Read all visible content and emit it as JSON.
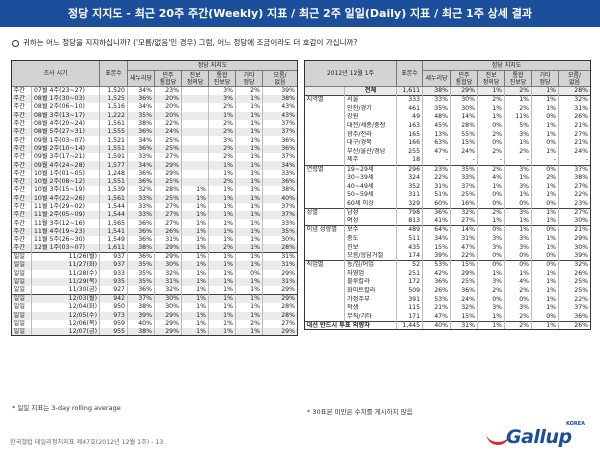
{
  "title": "정당 지지도 - 최근 20주 주간(Weekly) 지표 / 최근 2주 일일(Daily) 지표 / 최근 1주 상세 결과",
  "question": "귀하는 어느 정당을 지지하십니까? ('모름/없음'인 경우) 그럼, 어느 정당에 조금이라도 더 호감이 가십니까?",
  "left_table": {
    "col_survey": "조사 시기",
    "col_base": "표본수",
    "col_group": "정당 지지도",
    "cols": [
      "새누리당",
      "민주\n통합당",
      "진보\n정의당",
      "통합\n진보당",
      "기타\n정당",
      "모름/\n없음"
    ],
    "weekly": [
      [
        "주간",
        "07월 4주(23~27)",
        "1,520",
        "34%",
        "23%",
        "",
        "3%",
        "2%",
        "39%"
      ],
      [
        "주간",
        "08월 1주(30~03)",
        "1,525",
        "36%",
        "20%",
        "",
        "3%",
        "1%",
        "38%"
      ],
      [
        "주간",
        "08월 2주(06~10)",
        "1,516",
        "34%",
        "20%",
        "",
        "2%",
        "1%",
        "43%"
      ],
      [
        "주간",
        "08월 3주(13~17)",
        "1,222",
        "35%",
        "20%",
        "",
        "1%",
        "1%",
        "43%"
      ],
      [
        "주간",
        "08월 4주(20~24)",
        "1,561",
        "38%",
        "22%",
        "",
        "2%",
        "1%",
        "37%"
      ],
      [
        "주간",
        "08월 5주(27~31)",
        "1,555",
        "36%",
        "24%",
        "",
        "2%",
        "1%",
        "37%"
      ],
      [
        "주간",
        "09월 1주(03~07)",
        "1,521",
        "34%",
        "25%",
        "",
        "3%",
        "1%",
        "36%"
      ],
      [
        "주간",
        "09월 2주(10~14)",
        "1,551",
        "36%",
        "25%",
        "",
        "2%",
        "1%",
        "36%"
      ],
      [
        "주간",
        "09월 3주(17~21)",
        "1,591",
        "33%",
        "27%",
        "",
        "2%",
        "1%",
        "37%"
      ],
      [
        "주간",
        "09월 4주(24~28)",
        "1,577",
        "34%",
        "29%",
        "",
        "1%",
        "1%",
        "34%"
      ],
      [
        "주간",
        "10월 1주(01~05)",
        "1,248",
        "36%",
        "29%",
        "",
        "1%",
        "1%",
        "33%"
      ],
      [
        "주간",
        "10월 2주(08~12)",
        "1,551",
        "36%",
        "25%",
        "",
        "2%",
        "1%",
        "36%"
      ],
      [
        "주간",
        "10월 3주(15~19)",
        "1,539",
        "32%",
        "28%",
        "1%",
        "1%",
        "1%",
        "38%"
      ],
      [
        "주간",
        "10월 4주(22~26)",
        "1,561",
        "33%",
        "25%",
        "1%",
        "1%",
        "1%",
        "40%"
      ],
      [
        "주간",
        "11월 1주(29~02)",
        "1,544",
        "33%",
        "27%",
        "1%",
        "1%",
        "1%",
        "37%"
      ],
      [
        "주간",
        "11월 2주(05~09)",
        "1,544",
        "33%",
        "27%",
        "1%",
        "1%",
        "1%",
        "37%"
      ],
      [
        "주간",
        "11월 3주(12~16)",
        "1,565",
        "36%",
        "27%",
        "1%",
        "1%",
        "1%",
        "33%"
      ],
      [
        "주간",
        "11월 4주(19~23)",
        "1,541",
        "36%",
        "26%",
        "1%",
        "1%",
        "1%",
        "35%"
      ],
      [
        "주간",
        "11월 5주(26~30)",
        "1,549",
        "36%",
        "31%",
        "1%",
        "1%",
        "1%",
        "30%"
      ],
      [
        "주간",
        "12월 1주(03~07)",
        "1,611",
        "38%",
        "29%",
        "1%",
        "2%",
        "1%",
        "28%"
      ]
    ],
    "daily": [
      [
        "일일",
        "11/26(월)",
        "937",
        "36%",
        "29%",
        "1%",
        "1%",
        "1%",
        "31%"
      ],
      [
        "일일",
        "11/27(화)",
        "937",
        "35%",
        "30%",
        "1%",
        "1%",
        "1%",
        "31%"
      ],
      [
        "일일",
        "11/28(수)",
        "933",
        "35%",
        "32%",
        "1%",
        "1%",
        "0%",
        "29%"
      ],
      [
        "일일",
        "11/29(목)",
        "935",
        "35%",
        "31%",
        "1%",
        "1%",
        "1%",
        "31%"
      ],
      [
        "일일",
        "11/30(금)",
        "927",
        "36%",
        "32%",
        "1%",
        "1%",
        "1%",
        "29%"
      ],
      [
        "일일",
        "12/03(월)",
        "942",
        "37%",
        "30%",
        "1%",
        "1%",
        "1%",
        "29%"
      ],
      [
        "일일",
        "12/04(화)",
        "950",
        "38%",
        "30%",
        "1%",
        "1%",
        "1%",
        "28%"
      ],
      [
        "일일",
        "12/05(수)",
        "973",
        "39%",
        "29%",
        "1%",
        "1%",
        "1%",
        "28%"
      ],
      [
        "일일",
        "12/06(목)",
        "959",
        "40%",
        "29%",
        "1%",
        "1%",
        "2%",
        "27%"
      ],
      [
        "일일",
        "12/07(금)",
        "955",
        "38%",
        "29%",
        "1%",
        "1%",
        "1%",
        "29%"
      ]
    ],
    "footnote": "* 일일 지표는 3-day rolling average"
  },
  "right_table": {
    "col_period": "2012년 12월 1주",
    "col_base": "표본수",
    "col_group": "정당 지지도",
    "cols": [
      "새누리당",
      "민주\n통합당",
      "진보\n정의당",
      "통합\n진보당",
      "기타\n정당",
      "모름/\n없음"
    ],
    "rows": [
      [
        "",
        "전체",
        "1,611",
        "38%",
        "29%",
        "1%",
        "2%",
        "1%",
        "28%"
      ],
      [
        "지역별",
        "서울",
        "333",
        "33%",
        "30%",
        "2%",
        "1%",
        "1%",
        "32%"
      ],
      [
        "",
        "인천/경기",
        "461",
        "35%",
        "30%",
        "1%",
        "2%",
        "1%",
        "31%"
      ],
      [
        "",
        "강원",
        "49",
        "48%",
        "14%",
        "1%",
        "11%",
        "0%",
        "26%"
      ],
      [
        "",
        "대전/세종/충청",
        "163",
        "45%",
        "28%",
        "0%",
        "5%",
        "1%",
        "21%"
      ],
      [
        "",
        "광주/전라",
        "165",
        "13%",
        "55%",
        "2%",
        "3%",
        "1%",
        "27%"
      ],
      [
        "",
        "대구/경북",
        "166",
        "63%",
        "15%",
        "0%",
        "1%",
        "0%",
        "21%"
      ],
      [
        "",
        "부산/울산/경남",
        "255",
        "47%",
        "24%",
        "2%",
        "2%",
        "1%",
        "24%"
      ],
      [
        "",
        "제주",
        "18",
        "-",
        "-",
        "-",
        "-",
        "-",
        "-"
      ],
      [
        "연령별",
        "19~29세",
        "296",
        "23%",
        "35%",
        "2%",
        "3%",
        "0%",
        "37%"
      ],
      [
        "",
        "30~39세",
        "324",
        "22%",
        "33%",
        "4%",
        "1%",
        "2%",
        "38%"
      ],
      [
        "",
        "40~49세",
        "352",
        "31%",
        "37%",
        "1%",
        "3%",
        "1%",
        "27%"
      ],
      [
        "",
        "50~59세",
        "311",
        "51%",
        "25%",
        "0%",
        "1%",
        "1%",
        "22%"
      ],
      [
        "",
        "60세 이상",
        "329",
        "60%",
        "16%",
        "0%",
        "0%",
        "0%",
        "23%"
      ],
      [
        "성별",
        "남성",
        "798",
        "36%",
        "32%",
        "2%",
        "3%",
        "1%",
        "27%"
      ],
      [
        "",
        "여성",
        "813",
        "41%",
        "27%",
        "1%",
        "1%",
        "1%",
        "30%"
      ],
      [
        "이념 성향별",
        "보수",
        "489",
        "64%",
        "14%",
        "0%",
        "1%",
        "0%",
        "21%"
      ],
      [
        "",
        "중도",
        "511",
        "34%",
        "31%",
        "3%",
        "3%",
        "1%",
        "29%"
      ],
      [
        "",
        "진보",
        "435",
        "15%",
        "47%",
        "3%",
        "3%",
        "1%",
        "30%"
      ],
      [
        "",
        "모름/응답거절",
        "174",
        "39%",
        "22%",
        "0%",
        "0%",
        "0%",
        "39%"
      ],
      [
        "직업별",
        "농/임/어업",
        "52",
        "53%",
        "15%",
        "0%",
        "0%",
        "0%",
        "32%"
      ],
      [
        "",
        "자영업",
        "251",
        "42%",
        "29%",
        "1%",
        "1%",
        "1%",
        "26%"
      ],
      [
        "",
        "블루칼라",
        "172",
        "36%",
        "25%",
        "3%",
        "4%",
        "1%",
        "25%"
      ],
      [
        "",
        "화이트칼라",
        "509",
        "26%",
        "36%",
        "2%",
        "2%",
        "1%",
        "25%"
      ],
      [
        "",
        "가정주부",
        "391",
        "53%",
        "24%",
        "0%",
        "0%",
        "1%",
        "22%"
      ],
      [
        "",
        "학생",
        "115",
        "21%",
        "32%",
        "3%",
        "3%",
        "1%",
        "37%"
      ],
      [
        "",
        "무직/기타",
        "171",
        "47%",
        "15%",
        "1%",
        "2%",
        "0%",
        "36%"
      ],
      [
        "대선 반드시 투표 의향자",
        "",
        "1,445",
        "40%",
        "31%",
        "1%",
        "2%",
        "1%",
        "26%"
      ]
    ],
    "footnote": "* 30표본 미만은 수치를 게시하지 않음"
  },
  "bottom_ref": "한국갤럽 데일리정치지표 제47호(2012년 12월 1주) - 13",
  "logo": {
    "text": "Gallup",
    "korea": "KOREA"
  },
  "colors": {
    "title_bg": "#1b4f9c",
    "header_bg": "#d3d3d3",
    "row_alt": "#ebebeb",
    "logo_red": "#e0262c"
  }
}
